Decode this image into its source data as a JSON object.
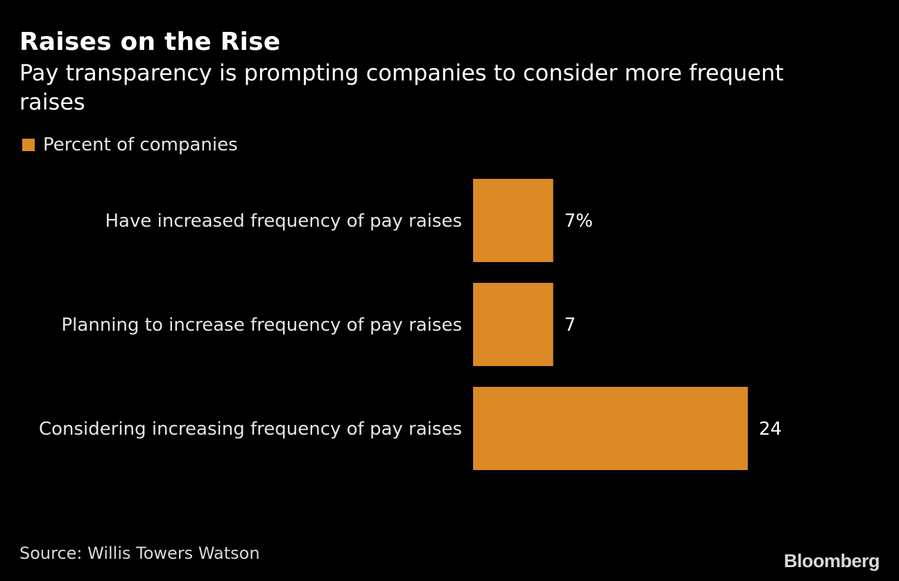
{
  "header": {
    "title": "Raises on the Rise",
    "subtitle": "Pay transparency is prompting companies to consider more frequent raises"
  },
  "legend": {
    "label": "Percent of companies",
    "color": "#DB8A25"
  },
  "footer": {
    "source": "Source: Willis Towers Watson",
    "logo": "Bloomberg"
  },
  "chart_data": {
    "type": "bar",
    "orientation": "horizontal",
    "title": "Raises on the Rise",
    "subtitle": "Pay transparency is prompting companies to consider more frequent raises",
    "categories": [
      "Have increased frequency of pay raises",
      "Planning to increase frequency of pay raises",
      "Considering increasing frequency of pay raises"
    ],
    "series": [
      {
        "name": "Percent of companies",
        "values": [
          7,
          7,
          24
        ],
        "color": "#DB8A25"
      }
    ],
    "value_labels": [
      "7%",
      "7",
      "24"
    ],
    "xlabel": "",
    "ylabel": "",
    "xlim": [
      0,
      24
    ],
    "grid": false,
    "legend_position": "top-left",
    "source": "Source: Willis Towers Watson"
  }
}
